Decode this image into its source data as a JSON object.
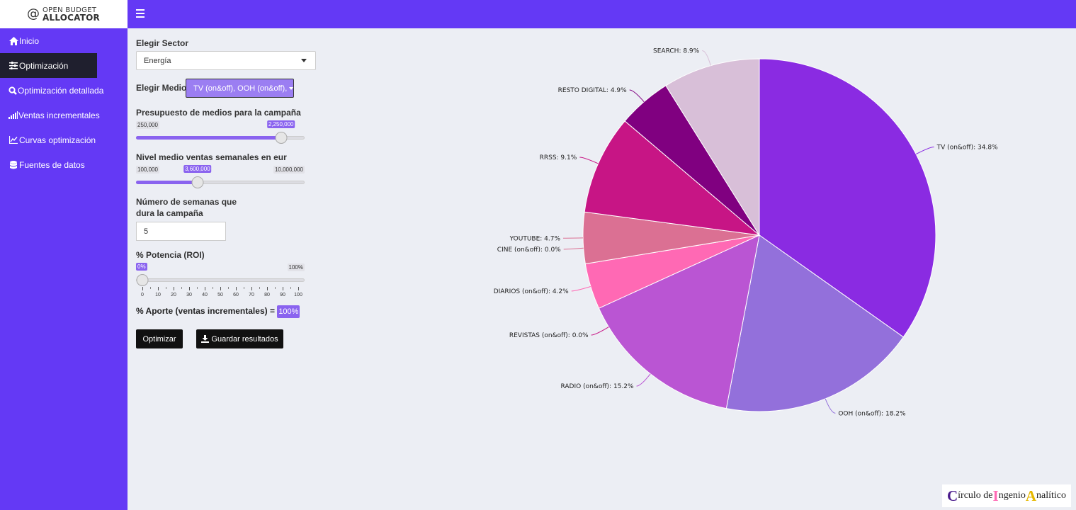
{
  "logo": {
    "line1": "OPEN BUDGET",
    "line2": "ALLOCATOR",
    "at_symbol": "@"
  },
  "colors": {
    "accent": "#6439f5",
    "slider": "#8a63ef",
    "sidebar_active": "#1f1f2e"
  },
  "sidebar": {
    "items": [
      {
        "label": "Inicio",
        "icon": "home-icon"
      },
      {
        "label": "Optimización",
        "icon": "sliders-icon",
        "active": true
      },
      {
        "label": "Optimización detallada",
        "icon": "search-icon"
      },
      {
        "label": "Ventas incrementales",
        "icon": "signal-bars-icon"
      },
      {
        "label": "Curvas optimización",
        "icon": "line-chart-icon"
      },
      {
        "label": "Fuentes de datos",
        "icon": "database-icon"
      }
    ]
  },
  "controls": {
    "sector_label": "Elegir Sector",
    "sector_value": "Energía",
    "medios_label": "Elegir Medios:",
    "medios_value": "TV (on&off), OOH (on&off),",
    "budget": {
      "label": "Presupuesto de medios para la campaña",
      "min": "250,000",
      "value": "2,250,000",
      "position": 0.86
    },
    "ventas": {
      "label": "Nivel medio ventas semanales en eur",
      "min": "100,000",
      "max": "10,000,000",
      "value": "3,600,000",
      "position": 0.36
    },
    "semanas": {
      "label_line1": "Número de semanas que",
      "label_line2": "dura la campaña",
      "value": "5"
    },
    "potencia": {
      "label": "% Potencia (ROI)",
      "min": "0%",
      "max": "100%",
      "value": "0%",
      "position": 0,
      "ticks": [
        "0",
        "10",
        "20",
        "30",
        "40",
        "50",
        "60",
        "70",
        "80",
        "90",
        "100"
      ]
    },
    "aporte_label": "% Aporte (ventas incrementales) =",
    "aporte_value": "100%",
    "optimize_label": "Optimizar",
    "save_label": "Guardar resultados"
  },
  "chart_data": {
    "type": "pie",
    "start": "12 o'clock, clockwise",
    "slices": [
      {
        "label": "TV (on&off)",
        "value": 34.8,
        "color": "#8a2be2",
        "label_text": "TV (on&off): 34.8%"
      },
      {
        "label": "OOH (on&off)",
        "value": 18.2,
        "color": "#9370db",
        "label_text": "OOH (on&off): 18.2%"
      },
      {
        "label": "RADIO (on&off)",
        "value": 15.2,
        "color": "#ba55d3",
        "label_text": "RADIO (on&off): 15.2%"
      },
      {
        "label": "REVISTAS (on&off)",
        "value": 0.0,
        "color": "#c71585",
        "label_text": "REVISTAS (on&off): 0.0%"
      },
      {
        "label": "DIARIOS (on&off)",
        "value": 4.2,
        "color": "#ff69b4",
        "label_text": "DIARIOS (on&off): 4.2%"
      },
      {
        "label": "CINE (on&off)",
        "value": 0.0,
        "color": "#db7093",
        "label_text": "CINE (on&off): 0.0%"
      },
      {
        "label": "YOUTUBE",
        "value": 4.7,
        "color": "#db7093",
        "label_text": "YOUTUBE: 4.7%"
      },
      {
        "label": "RRSS",
        "value": 9.1,
        "color": "#c71585",
        "label_text": "RRSS: 9.1%"
      },
      {
        "label": "RESTO DIGITAL",
        "value": 4.9,
        "color": "#800080",
        "label_text": "RESTO DIGITAL: 4.9%"
      },
      {
        "label": "SEARCH",
        "value": 8.9,
        "color": "#d8bfd8",
        "label_text": "SEARCH: 8.9%"
      }
    ]
  },
  "credit": {
    "c1": "C",
    "t1": "írculo de ",
    "c2": "I",
    "t2": "ngenio ",
    "c3": "A",
    "t3": "nalítico",
    "cap_colors": [
      "#4a1a8c",
      "#ff69b4",
      "#e6b800"
    ]
  }
}
